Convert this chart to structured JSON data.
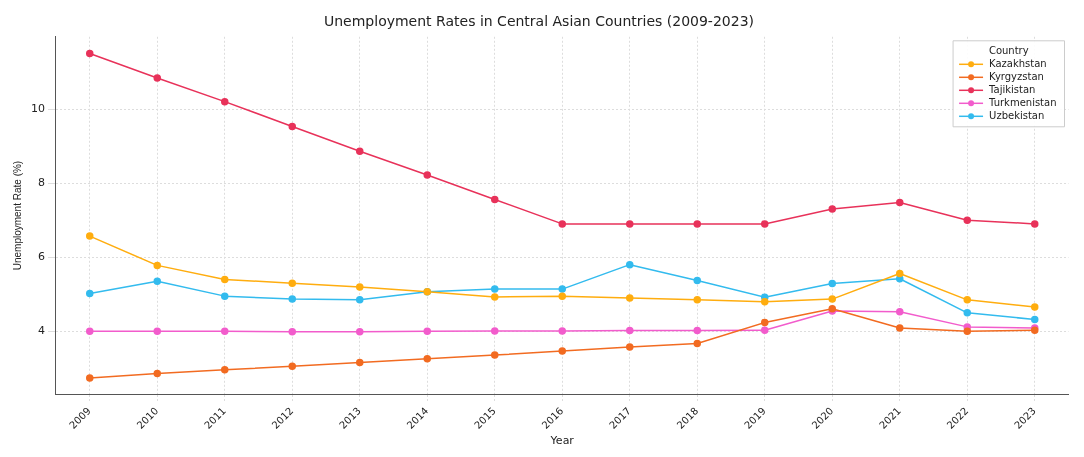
{
  "chart_data": {
    "type": "line",
    "title": "Unemployment Rates in Central Asian Countries (2009-2023)",
    "xlabel": "Year",
    "ylabel": "Unemployment Rate (%)",
    "legend_title": "Country",
    "categories": [
      "2009",
      "2010",
      "2011",
      "2012",
      "2013",
      "2014",
      "2015",
      "2016",
      "2017",
      "2018",
      "2019",
      "2020",
      "2021",
      "2022",
      "2023"
    ],
    "series": [
      {
        "name": "Kazakhstan",
        "color": "#ffad0f",
        "values": [
          6.57,
          5.78,
          5.4,
          5.3,
          5.2,
          5.07,
          4.93,
          4.95,
          4.9,
          4.85,
          4.8,
          4.87,
          5.56,
          4.85,
          4.66
        ]
      },
      {
        "name": "Kyrgyzstan",
        "color": "#f26b21",
        "values": [
          2.74,
          2.86,
          2.96,
          3.06,
          3.16,
          3.26,
          3.36,
          3.47,
          3.58,
          3.67,
          4.24,
          4.61,
          4.09,
          4.0,
          4.03
        ]
      },
      {
        "name": "Tajikistan",
        "color": "#e8325a",
        "values": [
          11.5,
          10.84,
          10.2,
          9.53,
          8.86,
          8.22,
          7.56,
          6.9,
          6.9,
          6.9,
          6.9,
          7.3,
          7.48,
          7.0,
          6.9
        ]
      },
      {
        "name": "Turkmenistan",
        "color": "#f25ccc",
        "values": [
          4.0,
          4.0,
          4.0,
          3.99,
          3.99,
          4.0,
          4.01,
          4.01,
          4.02,
          4.02,
          4.03,
          4.55,
          4.53,
          4.12,
          4.09
        ]
      },
      {
        "name": "Uzbekistan",
        "color": "#33bbee",
        "values": [
          5.02,
          5.35,
          4.95,
          4.87,
          4.85,
          5.07,
          5.14,
          5.14,
          5.8,
          5.37,
          4.92,
          5.29,
          5.42,
          4.5,
          4.32
        ]
      }
    ],
    "ylim": [
      2.3,
      11.95
    ],
    "yticks": [
      4,
      6,
      8,
      10
    ],
    "grid": true,
    "legend": "top right",
    "marker": "circle",
    "line_style": "solid"
  }
}
